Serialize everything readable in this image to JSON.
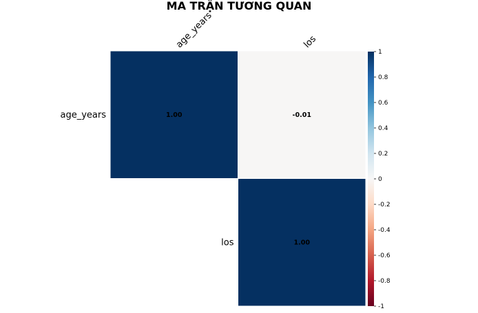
{
  "chart_data": {
    "type": "heatmap",
    "title": "MA TRẬN TƯƠNG QUAN",
    "row_labels": [
      "age_years",
      "los"
    ],
    "col_labels": [
      "age_years",
      "los"
    ],
    "values": [
      [
        1.0,
        -0.01
      ],
      [
        null,
        1.0
      ]
    ],
    "value_labels": [
      [
        "1.00",
        "-0.01"
      ],
      [
        "",
        "1.00"
      ]
    ],
    "shown": "upper",
    "colorbar": {
      "min": -1,
      "max": 1,
      "ticks": [
        "1",
        "0.8",
        "0.6",
        "0.4",
        "0.2",
        "0",
        "-0.2",
        "-0.4",
        "-0.6",
        "-0.8",
        "-1"
      ],
      "tick_values": [
        1,
        0.8,
        0.6,
        0.4,
        0.2,
        0,
        -0.2,
        -0.4,
        -0.6,
        -0.8,
        -1
      ],
      "colors": [
        "#67001f",
        "#b2182b",
        "#d6604d",
        "#f4a582",
        "#fddbc7",
        "#f7f7f7",
        "#d1e5f0",
        "#92c5de",
        "#4393c3",
        "#2166ac",
        "#053061"
      ]
    }
  }
}
